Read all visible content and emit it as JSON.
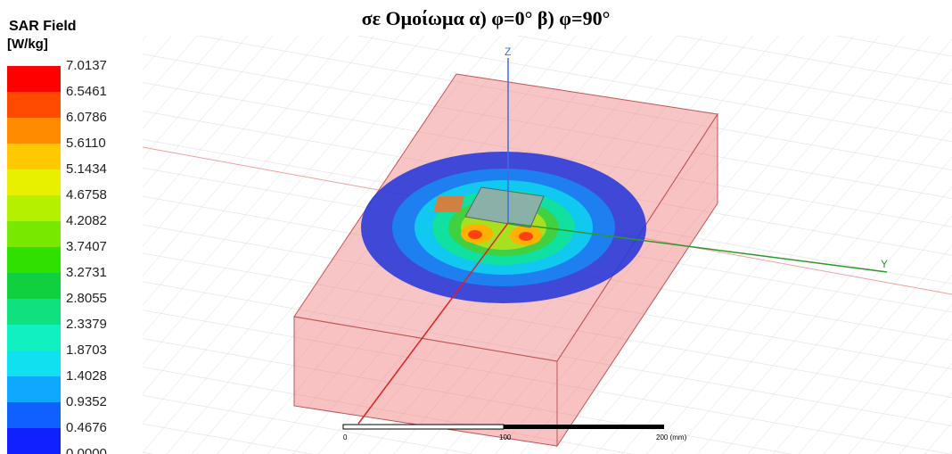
{
  "title": "σε Ομοίωμα α) φ=0° β) φ=90°",
  "legend": {
    "title": "SAR Field",
    "unit": "[W/kg]",
    "labels": [
      "7.0137",
      "6.5461",
      "6.0786",
      "5.6110",
      "5.1434",
      "4.6758",
      "4.2082",
      "3.7407",
      "3.2731",
      "2.8055",
      "2.3379",
      "1.8703",
      "1.4028",
      "0.9352",
      "0.4676",
      "0.0000"
    ]
  },
  "axes": {
    "z": "Z",
    "y": "Y"
  },
  "scale_bar": {
    "labels": [
      "0",
      "100",
      "200 (mm)"
    ]
  }
}
